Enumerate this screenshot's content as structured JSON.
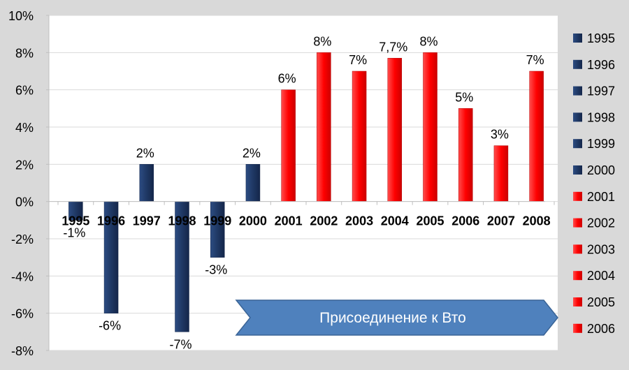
{
  "chart_data": {
    "type": "bar",
    "categories": [
      "1995",
      "1996",
      "1997",
      "1998",
      "1999",
      "2000",
      "2001",
      "2002",
      "2003",
      "2004",
      "2005",
      "2006",
      "2007",
      "2008"
    ],
    "values": [
      -1,
      -6,
      2,
      -7,
      -3,
      2,
      6,
      8,
      7,
      7.7,
      8,
      5,
      3,
      7
    ],
    "data_labels": [
      "-1%",
      "-6%",
      "2%",
      "-7%",
      "-3%",
      "2%",
      "6%",
      "8%",
      "7%",
      "7,7%",
      "8%",
      "5%",
      "3%",
      "7%"
    ],
    "ylim": [
      -8,
      10
    ],
    "y_ticks": [
      10,
      8,
      6,
      4,
      2,
      0,
      -2,
      -4,
      -6,
      -8
    ],
    "y_tick_labels": [
      "10%",
      "8%",
      "6%",
      "4%",
      "2%",
      "0%",
      "-2%",
      "-4%",
      "-6%",
      "-8%"
    ],
    "grid": true,
    "legend_position": "right",
    "legend": [
      "1995",
      "1996",
      "1997",
      "1998",
      "1999",
      "2000",
      "2001",
      "2002",
      "2003",
      "2004",
      "2005",
      "2006"
    ],
    "colors": {
      "before": "#1f3864",
      "after": "#ff0000",
      "arrow": "#4f81bd",
      "plot_bg": "#ffffff",
      "outer_bg": "#d9d9d9",
      "grid": "#d9d9d9"
    },
    "color_groups": [
      "before",
      "before",
      "before",
      "before",
      "before",
      "before",
      "after",
      "after",
      "after",
      "after",
      "after",
      "after",
      "after",
      "after"
    ],
    "annotation": "Присоединение к Вто"
  }
}
